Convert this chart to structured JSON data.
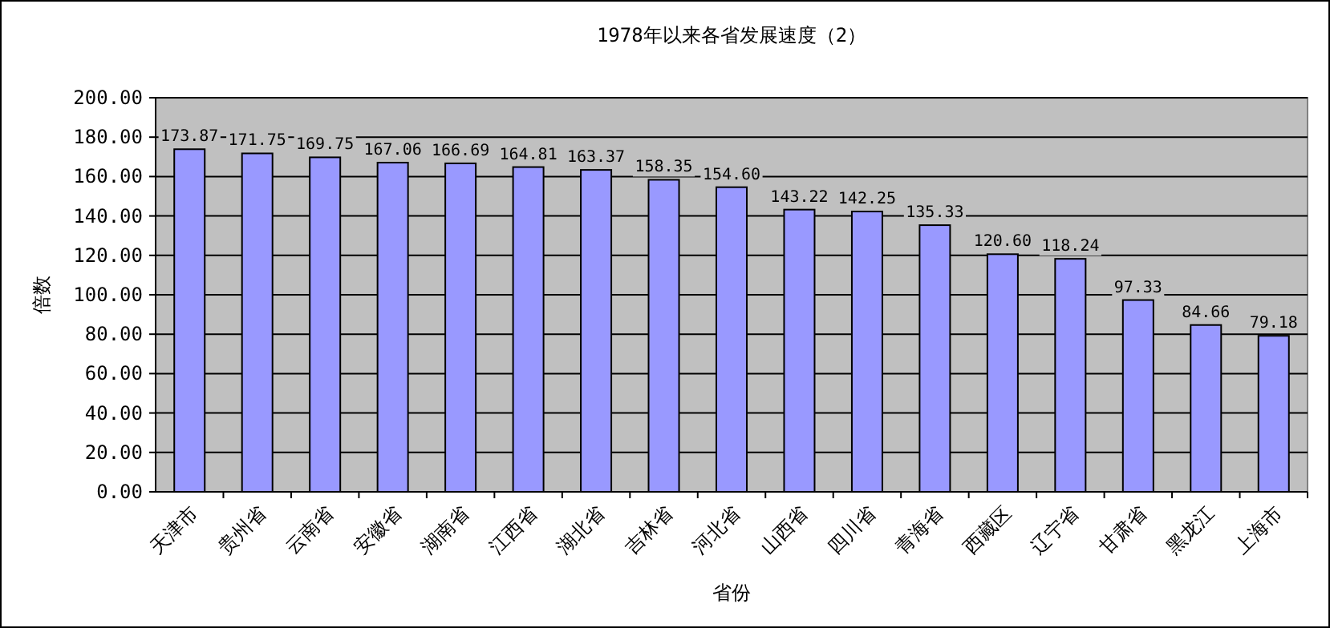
{
  "chart_data": {
    "type": "bar",
    "title": "1978年以来各省发展速度（2）",
    "xlabel": "省份",
    "ylabel": "倍数",
    "categories": [
      "天津市",
      "贵州省",
      "云南省",
      "安徽省",
      "湖南省",
      "江西省",
      "湖北省",
      "吉林省",
      "河北省",
      "山西省",
      "四川省",
      "青海省",
      "西藏区",
      "辽宁省",
      "甘肃省",
      "黑龙江",
      "上海市"
    ],
    "values": [
      173.87,
      171.75,
      169.75,
      167.06,
      166.69,
      164.81,
      163.37,
      158.35,
      154.6,
      143.22,
      142.25,
      135.33,
      120.6,
      118.24,
      97.33,
      84.66,
      79.18
    ],
    "value_labels": [
      "173.87",
      "171.75",
      "169.75",
      "167.06",
      "166.69",
      "164.81",
      "163.37",
      "158.35",
      "154.60",
      "143.22",
      "142.25",
      "135.33",
      "120.60",
      "118.24",
      "97.33",
      "84.66",
      "79.18"
    ],
    "color": "#9999ff",
    "ylim": [
      0,
      200
    ],
    "yticks": [
      {
        "value": 0,
        "label": "0.00"
      },
      {
        "value": 20,
        "label": "20.00"
      },
      {
        "value": 40,
        "label": "40.00"
      },
      {
        "value": 60,
        "label": "60.00"
      },
      {
        "value": 80,
        "label": "80.00"
      },
      {
        "value": 100,
        "label": "100.00"
      },
      {
        "value": 120,
        "label": "120.00"
      },
      {
        "value": 140,
        "label": "140.00"
      },
      {
        "value": 160,
        "label": "160.00"
      },
      {
        "value": 180,
        "label": "180.00"
      },
      {
        "value": 200,
        "label": "200.00"
      }
    ],
    "grid": "y"
  }
}
